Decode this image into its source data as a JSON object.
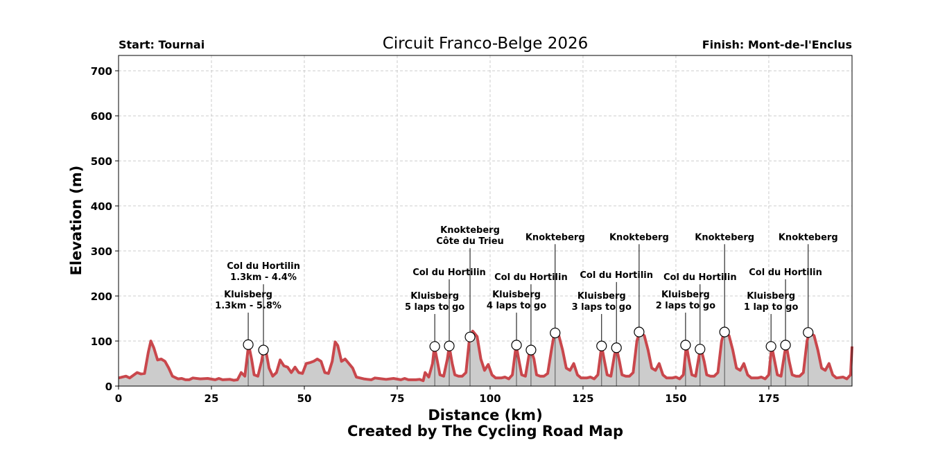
{
  "chart_data": {
    "type": "elevation",
    "title": "Circuit Franco-Belge 2026",
    "subtitle_left": "Start: Tournai",
    "subtitle_right": "Finish: Mont-de-l'Enclus",
    "x_label": "Distance (km)",
    "y_label": "Elevation (m)",
    "credit": "Created by The Cycling Road Map",
    "xlim": [
      0,
      197.4
    ],
    "ylim": [
      0,
      734
    ],
    "xticks": [
      0,
      25,
      50,
      75,
      100,
      125,
      150,
      175
    ],
    "yticks": [
      0,
      100,
      200,
      300,
      400,
      500,
      600,
      700
    ],
    "grid": true,
    "line_color": "#c9474c",
    "fill_color": "#cccccc",
    "x": [
      0,
      2,
      3,
      5,
      6,
      7,
      8,
      8.7,
      9.5,
      10.5,
      11.5,
      12.5,
      13.5,
      14.5,
      16,
      17,
      18,
      19,
      20,
      22,
      24,
      26,
      27,
      28,
      30,
      31,
      32,
      33,
      34,
      35,
      35.8,
      36.5,
      37.5,
      38.5,
      39,
      39.5,
      40.5,
      41.5,
      42.5,
      43.5,
      44.5,
      45.5,
      46.5,
      47.5,
      48.5,
      49.5,
      50.5,
      51.5,
      52.5,
      53.5,
      54.5,
      55.5,
      56.5,
      57.5,
      58.3,
      59,
      60,
      61,
      62,
      63,
      64,
      65,
      66,
      67,
      68,
      69,
      70,
      72,
      74,
      76,
      77,
      78,
      80,
      81,
      82,
      82.5,
      83.5,
      84.5,
      85,
      85.8,
      86.5,
      87.5,
      88.5,
      89,
      89.8,
      90.5,
      91.5,
      92.5,
      93.5,
      94.5,
      95.3,
      96.5,
      97.5,
      98.5,
      99.5,
      100.5,
      101.5,
      103,
      104,
      105,
      106,
      107,
      107.8,
      108.5,
      109.5,
      110.5,
      111,
      111.8,
      112.5,
      113.5,
      114.5,
      115.5,
      116.5,
      117.3,
      118.5,
      119.5,
      120.5,
      121.5,
      122.5,
      123.5,
      124.5,
      126,
      127,
      128,
      129,
      130,
      130.8,
      131.5,
      132.5,
      133.5,
      134,
      134.8,
      135.5,
      136.5,
      137.5,
      138.5,
      139.5,
      140.2,
      141.5,
      142.5,
      143.5,
      144.5,
      145.5,
      146.5,
      147.5,
      149,
      150,
      151,
      152,
      152.8,
      153.6,
      154.3,
      155.3,
      156.3,
      156.8,
      157.6,
      158.3,
      159.3,
      160.3,
      161.3,
      162.3,
      163,
      164.3,
      165.3,
      166.3,
      167.3,
      168.3,
      169.3,
      170.3,
      172,
      173,
      174,
      175,
      175.8,
      176.6,
      177.3,
      178.3,
      179.3,
      179.7,
      180.5,
      181.3,
      182.3,
      183.3,
      184.3,
      185.3,
      185.9,
      187.2,
      188.2,
      189.2,
      190.2,
      191.2,
      192.2,
      193.2,
      195,
      196,
      197,
      197.4
    ],
    "values": [
      18,
      22,
      18,
      30,
      27,
      28,
      75,
      100,
      85,
      58,
      60,
      55,
      40,
      22,
      16,
      17,
      14,
      14,
      18,
      16,
      17,
      14,
      17,
      14,
      15,
      13,
      14,
      30,
      22,
      92,
      60,
      25,
      22,
      55,
      80,
      85,
      40,
      22,
      30,
      58,
      45,
      42,
      30,
      42,
      30,
      28,
      50,
      52,
      55,
      60,
      55,
      30,
      28,
      55,
      98,
      90,
      55,
      60,
      50,
      40,
      20,
      18,
      16,
      15,
      14,
      18,
      17,
      15,
      17,
      14,
      17,
      14,
      14,
      15,
      12,
      30,
      20,
      50,
      88,
      55,
      25,
      22,
      60,
      88,
      50,
      25,
      22,
      22,
      30,
      110,
      122,
      110,
      60,
      35,
      48,
      25,
      18,
      18,
      20,
      16,
      25,
      91,
      55,
      25,
      22,
      70,
      80,
      60,
      25,
      22,
      22,
      28,
      80,
      118,
      112,
      80,
      40,
      35,
      50,
      25,
      18,
      18,
      20,
      16,
      25,
      89,
      55,
      25,
      22,
      70,
      85,
      55,
      25,
      22,
      22,
      30,
      100,
      120,
      112,
      80,
      40,
      35,
      50,
      25,
      18,
      18,
      20,
      16,
      25,
      91,
      55,
      25,
      22,
      70,
      81,
      55,
      25,
      22,
      22,
      30,
      100,
      120,
      112,
      80,
      40,
      35,
      50,
      25,
      18,
      18,
      20,
      16,
      25,
      88,
      55,
      25,
      22,
      75,
      91,
      55,
      25,
      22,
      22,
      30,
      100,
      119,
      112,
      80,
      40,
      35,
      50,
      25,
      18,
      20,
      16,
      25,
      88
    ],
    "annotations": [
      {
        "lines": [
          "Kluisberg",
          "1.3km - 5.8%"
        ],
        "x": 34.9,
        "y": 92,
        "label_y": 163
      },
      {
        "lines": [
          "Col du Hortilin",
          "1.3km - 4.4%"
        ],
        "x": 39.0,
        "y": 80,
        "label_y": 226
      },
      {
        "lines": [
          "Kluisberg",
          "5 laps to go"
        ],
        "x": 85.1,
        "y": 88,
        "label_y": 160
      },
      {
        "lines": [
          "Col du Hortilin"
        ],
        "x": 89.0,
        "y": 89,
        "label_y": 237
      },
      {
        "lines": [
          "Knokteberg",
          "Côte du Trieu"
        ],
        "x": 94.6,
        "y": 109,
        "label_y": 306
      },
      {
        "lines": [
          "Kluisberg",
          "4 laps to go"
        ],
        "x": 107.1,
        "y": 91,
        "label_y": 163
      },
      {
        "lines": [
          "Col du Hortilin"
        ],
        "x": 111.0,
        "y": 80,
        "label_y": 226
      },
      {
        "lines": [
          "Knokteberg"
        ],
        "x": 117.5,
        "y": 118,
        "label_y": 315
      },
      {
        "lines": [
          "Kluisberg",
          "3 laps to go"
        ],
        "x": 130.0,
        "y": 89,
        "label_y": 160
      },
      {
        "lines": [
          "Col du Hortilin"
        ],
        "x": 134.0,
        "y": 85,
        "label_y": 231
      },
      {
        "lines": [
          "Knokteberg"
        ],
        "x": 140.1,
        "y": 120,
        "label_y": 315
      },
      {
        "lines": [
          "Kluisberg",
          "2 laps to go"
        ],
        "x": 152.6,
        "y": 91,
        "label_y": 163
      },
      {
        "lines": [
          "Col du Hortilin"
        ],
        "x": 156.5,
        "y": 82,
        "label_y": 226
      },
      {
        "lines": [
          "Knokteberg"
        ],
        "x": 163.1,
        "y": 120,
        "label_y": 315
      },
      {
        "lines": [
          "Kluisberg",
          "1 lap to go"
        ],
        "x": 175.6,
        "y": 88,
        "label_y": 160
      },
      {
        "lines": [
          "Col du Hortilin"
        ],
        "x": 179.5,
        "y": 91,
        "label_y": 237
      },
      {
        "lines": [
          "Knokteberg"
        ],
        "x": 185.6,
        "y": 119,
        "label_y": 315
      }
    ]
  }
}
